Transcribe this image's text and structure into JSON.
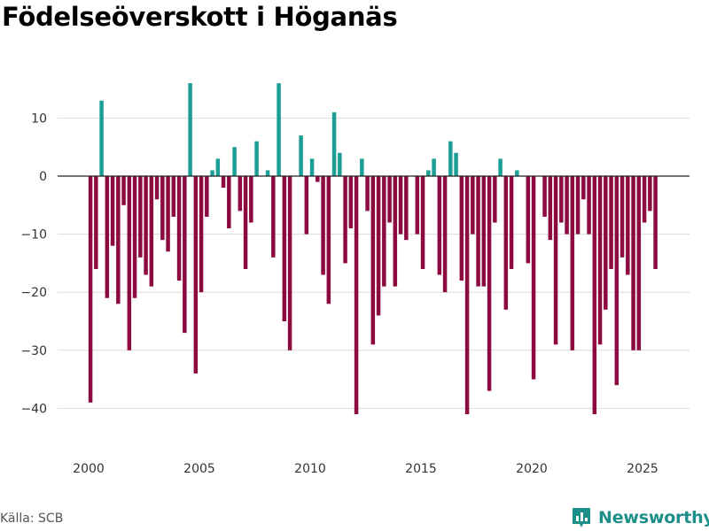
{
  "chart_data": {
    "type": "bar",
    "title": "Födelseöverskott i Höganäs",
    "xlabel": "",
    "ylabel": "",
    "x_start": 2000.0833,
    "x_step": 0.25,
    "xlim": [
      1999.3,
      2027.1
    ],
    "ylim": [
      -47,
      19
    ],
    "yticks": [
      10,
      0,
      -10,
      -20,
      -30,
      -40
    ],
    "ytick_labels": [
      "10",
      "0",
      "−10",
      "−20",
      "−30",
      "−40"
    ],
    "xticks": [
      2000,
      2005,
      2010,
      2015,
      2020,
      2025
    ],
    "xtick_labels": [
      "2000",
      "2005",
      "2010",
      "2015",
      "2020",
      "2025"
    ],
    "positive_color": "#1a9e96",
    "negative_color": "#8c0a40",
    "values": [
      -39,
      -16,
      13,
      -21,
      -12,
      -22,
      -5,
      -30,
      -21,
      -14,
      -17,
      -19,
      -4,
      -11,
      -13,
      -7,
      -18,
      -27,
      16,
      -34,
      -20,
      -7,
      1,
      3,
      -2,
      -9,
      5,
      -6,
      -16,
      -8,
      6,
      0,
      1,
      -14,
      16,
      -25,
      -30,
      0,
      7,
      -10,
      3,
      -1,
      -17,
      -22,
      11,
      4,
      -15,
      -9,
      -41,
      3,
      -6,
      -29,
      -24,
      -19,
      -8,
      -19,
      -10,
      -11,
      0,
      -10,
      -16,
      1,
      3,
      -17,
      -20,
      6,
      4,
      -18,
      -41,
      -10,
      -19,
      -19,
      -37,
      -8,
      3,
      -23,
      -16,
      1,
      0,
      -15,
      -35,
      0,
      -7,
      -11,
      -29,
      -8,
      -10,
      -30,
      -10,
      -4,
      -10,
      -41,
      -29,
      -23,
      -16,
      -36,
      -14,
      -17,
      -30,
      -30,
      -8,
      -6,
      -16
    ]
  },
  "source": "Källa: SCB",
  "brand": "Newsworthy"
}
